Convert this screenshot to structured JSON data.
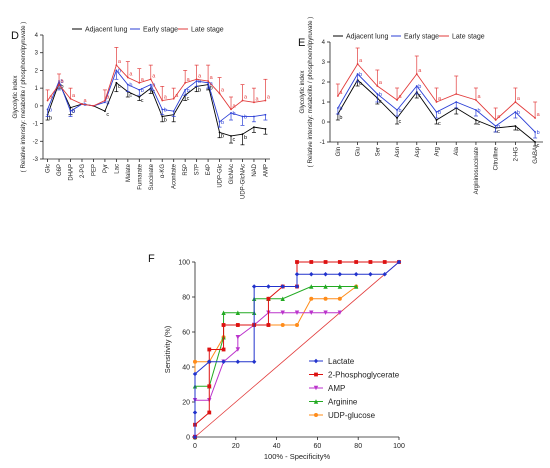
{
  "chart_data": [
    {
      "panel": "D",
      "type": "line",
      "ylabel": "Glycolytic index",
      "ylabel2": "( Relative intensity: metabolite / phosphoenolpyruvate )",
      "ylim": [
        -3,
        4
      ],
      "yticks": [
        -3,
        -2,
        -1,
        0,
        1,
        2,
        3,
        4
      ],
      "categories": [
        "Glc",
        "G6P",
        "DHAP",
        "2-PG",
        "PEP",
        "Pyr",
        "Lac",
        "Malate",
        "Fumarate",
        "Succinate",
        "α-KG",
        "Aconitate",
        "R5P",
        "S7P",
        "E4P",
        "UDP-Glc",
        "GlcNAc",
        "UDP-GlcNAc",
        "NAD",
        "AMP"
      ],
      "series": [
        {
          "name": "Adjacent lung",
          "color": "#000000",
          "values": [
            -0.5,
            1.3,
            -0.1,
            0.1,
            0,
            -0.3,
            1.3,
            0.8,
            0.5,
            1.0,
            -0.6,
            -0.5,
            0.6,
            1.1,
            1.2,
            -1.5,
            -1.7,
            -1.6,
            -1.2,
            -1.3
          ],
          "err": [
            0.3,
            0.3,
            0.4,
            0,
            0,
            0,
            0.5,
            0.3,
            0.2,
            0.3,
            0.3,
            0.4,
            0.3,
            0.3,
            0.3,
            0.3,
            0.4,
            0.6,
            0.3,
            0.3
          ],
          "labels": [
            "b",
            "b",
            "b",
            "",
            "",
            "c",
            "c",
            "c",
            "c",
            "c",
            "b",
            "",
            "c",
            "b",
            "b",
            "b",
            "c",
            "b",
            "",
            ""
          ]
        },
        {
          "name": "Early stage",
          "color": "#2b3fd6",
          "values": [
            -0.2,
            1.4,
            -0.3,
            0.1,
            0,
            0.2,
            2.0,
            1.2,
            0.9,
            1.2,
            -0.2,
            -0.3,
            0.9,
            1.4,
            1.3,
            -0.9,
            -0.4,
            -0.6,
            -0.6,
            -0.5
          ],
          "err": [
            0.4,
            0.5,
            0.3,
            0,
            0,
            0,
            0.5,
            0.4,
            0.3,
            0.3,
            0.3,
            0.3,
            0.3,
            0.3,
            0.3,
            0.3,
            0.4,
            0.5,
            0.3,
            0.3
          ],
          "labels": [
            "b",
            "b",
            "b",
            "b",
            "",
            "b",
            "b",
            "b",
            "b",
            "b",
            "b",
            "",
            "b",
            "b",
            "a",
            "b",
            "b",
            "b",
            "",
            ""
          ]
        },
        {
          "name": "Late stage",
          "color": "#e23b3b",
          "values": [
            0.3,
            1.2,
            0.4,
            0.1,
            0,
            0.3,
            2.3,
            1.6,
            1.3,
            1.5,
            0.3,
            0.4,
            1.3,
            1.5,
            1.4,
            0.7,
            -0.2,
            0.3,
            0.2,
            0.3
          ],
          "err": [
            0.6,
            0.6,
            0.6,
            0,
            0,
            0.6,
            1.0,
            0.9,
            0.8,
            0.8,
            0.8,
            0.6,
            0.7,
            0.8,
            0.9,
            0.9,
            0.7,
            0.9,
            0.8,
            1.2
          ],
          "labels": [
            "a",
            "a",
            "a",
            "a",
            "",
            "a",
            "a",
            "a",
            "a",
            "a",
            "a",
            "a",
            "a",
            "a",
            "a",
            "a",
            "a",
            "a",
            "a",
            "a"
          ]
        }
      ]
    },
    {
      "panel": "E",
      "type": "line",
      "ylabel": "Glycolytic index",
      "ylabel2": "( Relative intensity: metabolite / phosphoenolpyruvate )",
      "ylim": [
        -1,
        4
      ],
      "yticks": [
        -1,
        0,
        1,
        2,
        3,
        4
      ],
      "categories": [
        "Gln",
        "Glu",
        "Ser",
        "Asn",
        "Asp",
        "Arg",
        "Ala",
        "Argininosuccinate",
        "Citrulline",
        "2-HG",
        "GABA"
      ],
      "series": [
        {
          "name": "Adjacent lung",
          "color": "#000000",
          "values": [
            0.4,
            2.1,
            1.2,
            0.2,
            1.5,
            0.1,
            0.7,
            0.1,
            -0.3,
            -0.2,
            -1.0
          ],
          "err": [
            0.3,
            0.3,
            0.3,
            0.3,
            0.3,
            0.2,
            0.3,
            0.2,
            0.2,
            0.2,
            0.2
          ],
          "labels": [
            "b",
            "c",
            "c",
            "c",
            "c",
            "c",
            "",
            "c",
            "c",
            "c",
            "c"
          ]
        },
        {
          "name": "Early stage",
          "color": "#2b3fd6",
          "values": [
            0.7,
            2.4,
            1.4,
            0.6,
            1.8,
            0.5,
            1.0,
            0.6,
            -0.2,
            0.5,
            -0.5
          ],
          "err": [
            0.3,
            0.4,
            0.4,
            0.3,
            0.4,
            0.3,
            0.3,
            0.3,
            0.3,
            0.3,
            0.3
          ],
          "labels": [
            "b",
            "b",
            "b",
            "b",
            "b",
            "b",
            "",
            "b",
            "b",
            "b",
            "b"
          ]
        },
        {
          "name": "Late stage",
          "color": "#e23b3b",
          "values": [
            1.3,
            2.9,
            1.8,
            1.1,
            2.4,
            1.0,
            1.4,
            1.1,
            0.1,
            1.0,
            0.2
          ],
          "err": [
            0.6,
            0.8,
            0.8,
            0.6,
            0.9,
            0.7,
            0.9,
            0.6,
            0.6,
            0.7,
            0.8
          ],
          "labels": [
            "a",
            "a",
            "a",
            "a",
            "a",
            "a",
            "",
            "a",
            "a",
            "a",
            "a"
          ]
        }
      ]
    },
    {
      "panel": "F",
      "type": "line",
      "xlabel": "100% - Specificity%",
      "ylabel": "Sensitivity (%)",
      "xlim": [
        0,
        100
      ],
      "ylim": [
        0,
        100
      ],
      "ticks": [
        0,
        20,
        40,
        60,
        80,
        100
      ],
      "series": [
        {
          "name": "Lactate",
          "color": "#2233cc",
          "marker": "diamond",
          "x": [
            0,
            0,
            0,
            7,
            7,
            14,
            21,
            29,
            29,
            36,
            43,
            50,
            50,
            57,
            64,
            71,
            79,
            86,
            93,
            100
          ],
          "y": [
            0,
            14,
            36,
            43,
            43,
            43,
            43,
            43,
            86,
            86,
            86,
            86,
            93,
            93,
            93,
            93,
            93,
            93,
            93,
            100
          ]
        },
        {
          "name": "2-Phosphoglycerate",
          "color": "#dd1111",
          "marker": "square",
          "x": [
            0,
            0,
            7,
            7,
            7,
            14,
            14,
            21,
            29,
            36,
            36,
            43,
            50,
            50,
            57,
            64,
            71,
            79,
            86,
            93,
            100
          ],
          "y": [
            0,
            7,
            14,
            29,
            50,
            50,
            64,
            64,
            64,
            64,
            79,
            86,
            86,
            100,
            100,
            100,
            100,
            100,
            100,
            100,
            100
          ]
        },
        {
          "name": "AMP",
          "color": "#bb33cc",
          "marker": "triangle-down",
          "x": [
            0,
            0,
            7,
            14,
            21,
            21,
            29,
            36,
            43,
            50,
            57,
            64,
            71
          ],
          "y": [
            0,
            21,
            21,
            43,
            50,
            57,
            64,
            71,
            71,
            71,
            71,
            71,
            71
          ]
        },
        {
          "name": "Arginine",
          "color": "#22aa22",
          "marker": "triangle-up",
          "x": [
            0,
            0,
            7,
            14,
            14,
            21,
            29,
            29,
            36,
            43,
            57,
            64,
            71,
            79
          ],
          "y": [
            0,
            29,
            29,
            57,
            71,
            71,
            71,
            79,
            79,
            79,
            86,
            86,
            86,
            86
          ]
        },
        {
          "name": "UDP-glucose",
          "color": "#ff8c1a",
          "marker": "circle",
          "x": [
            0,
            0,
            7,
            14,
            14,
            21,
            29,
            36,
            43,
            50,
            57,
            64,
            71,
            79
          ],
          "y": [
            0,
            43,
            43,
            57,
            64,
            64,
            64,
            64,
            64,
            64,
            79,
            79,
            79,
            86
          ]
        }
      ],
      "reference_line": {
        "color": "#e23b3b",
        "from": [
          0,
          0
        ],
        "to": [
          100,
          100
        ]
      }
    }
  ]
}
